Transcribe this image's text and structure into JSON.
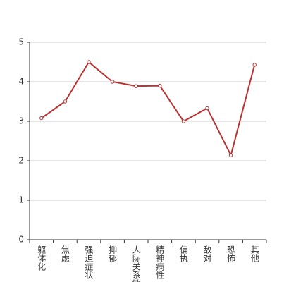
{
  "chart_data": {
    "type": "line",
    "categories": [
      "躯体化",
      "焦虑",
      "强迫症状",
      "抑郁",
      "人际关系敏感",
      "精神病性",
      "偏执",
      "敌对",
      "恐怖",
      "其他"
    ],
    "values": [
      3.08,
      3.5,
      4.5,
      4.0,
      3.89,
      3.9,
      3.0,
      3.33,
      2.14,
      4.43
    ],
    "color": "#b83232",
    "ylim": [
      0,
      5
    ],
    "yticks": [
      0,
      1,
      2,
      3,
      4,
      5
    ],
    "grid": true
  }
}
